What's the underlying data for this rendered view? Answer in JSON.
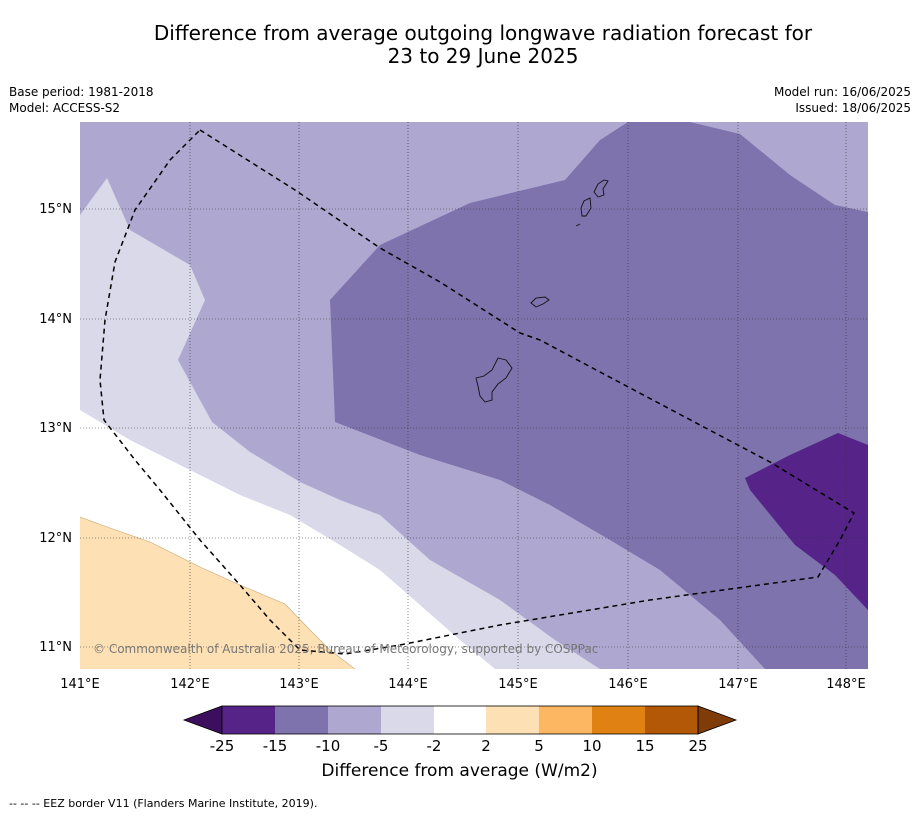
{
  "title_line1": "Difference from average outgoing longwave radiation forecast for",
  "title_line2": "23 to 29 June 2025",
  "meta": {
    "base_period": "Base period: 1981-2018",
    "model": "Model: ACCESS-S2",
    "model_run": "Model run: 16/06/2025",
    "issued": "Issued: 18/06/2025"
  },
  "map": {
    "lon_labels": [
      "141°E",
      "142°E",
      "143°E",
      "144°E",
      "145°E",
      "146°E",
      "147°E",
      "148°E"
    ],
    "lat_labels": [
      "15°N",
      "14°N",
      "13°N",
      "12°N",
      "11°N"
    ],
    "copyright": "© Commonwealth of Australia 2025, Bureau of Meteorology, supported by COSPPac"
  },
  "colorbar": {
    "labels": [
      "-25",
      "-15",
      "-10",
      "-5",
      "-2",
      "2",
      "5",
      "10",
      "15",
      "25"
    ],
    "colors": {
      "below_min": "#3b0f5e",
      "bins": [
        "#562388",
        "#7f73ad",
        "#aea8d0",
        "#d9d9ea",
        "#ffffff",
        "#fde0b3",
        "#fdb762",
        "#e08213",
        "#b35806"
      ],
      "above_max": "#7f3b08"
    },
    "title": "Difference from average (W/m2)"
  },
  "footer": "--  --  -- EEZ border V11 (Flanders Marine Institute, 2019)."
}
